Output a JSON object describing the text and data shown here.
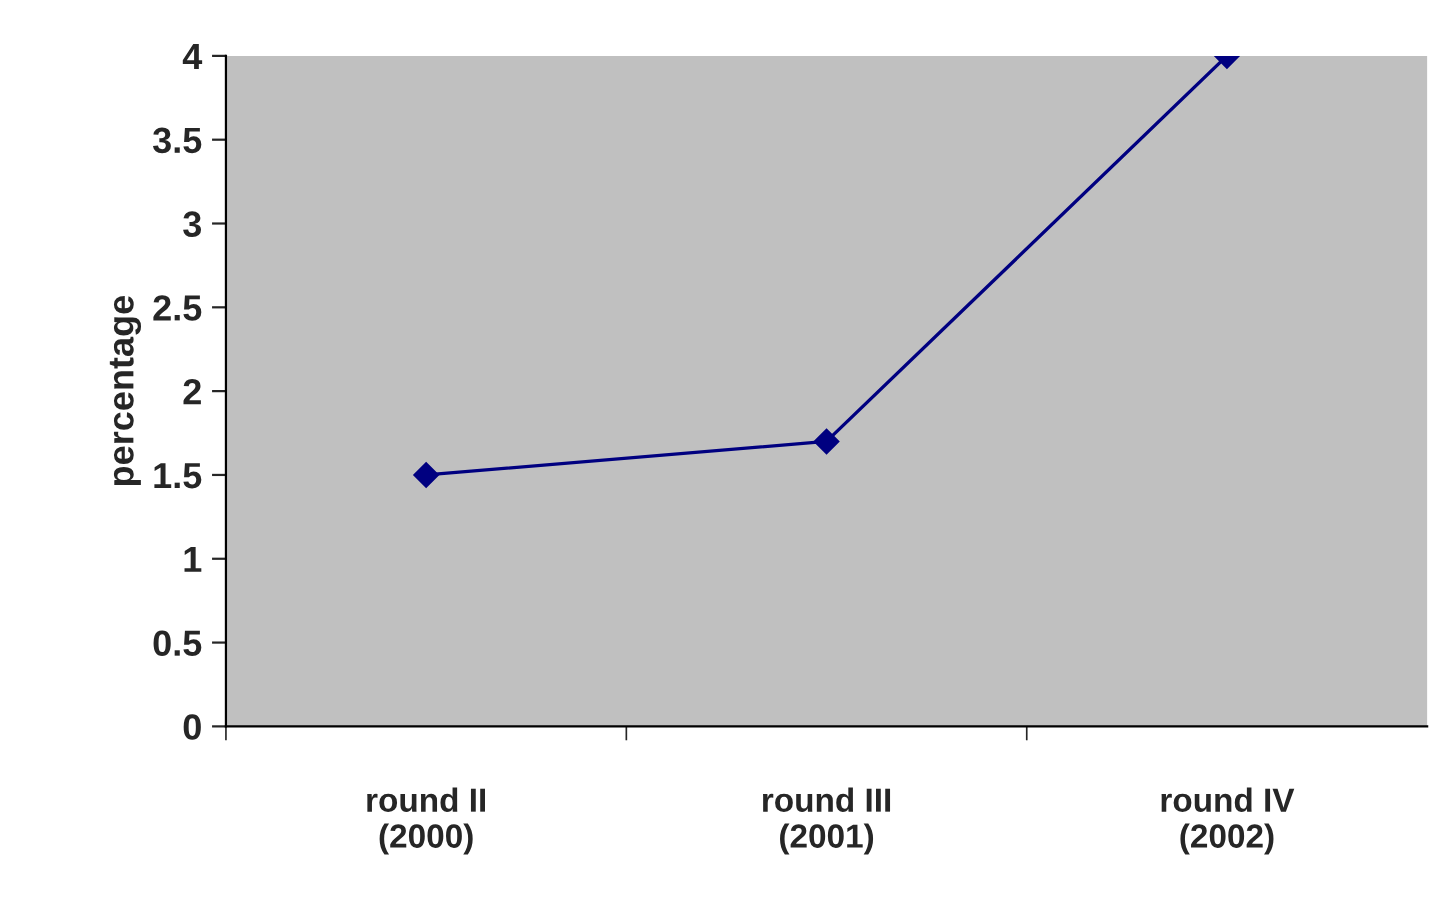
{
  "chart_data": {
    "type": "line",
    "ylabel": "percentage",
    "categories": [
      "round II\n(2000)",
      "round III\n(2001)",
      "round IV\n(2002)"
    ],
    "series": [
      {
        "color": "#000080",
        "values": [
          1.5,
          1.7,
          4
        ]
      }
    ],
    "ylim": [
      0,
      4
    ],
    "yticks": [
      0,
      0.5,
      1,
      1.5,
      2,
      2.5,
      3,
      3.5,
      4
    ],
    "grid": false,
    "marker": "diamond",
    "line_style": "solid"
  }
}
